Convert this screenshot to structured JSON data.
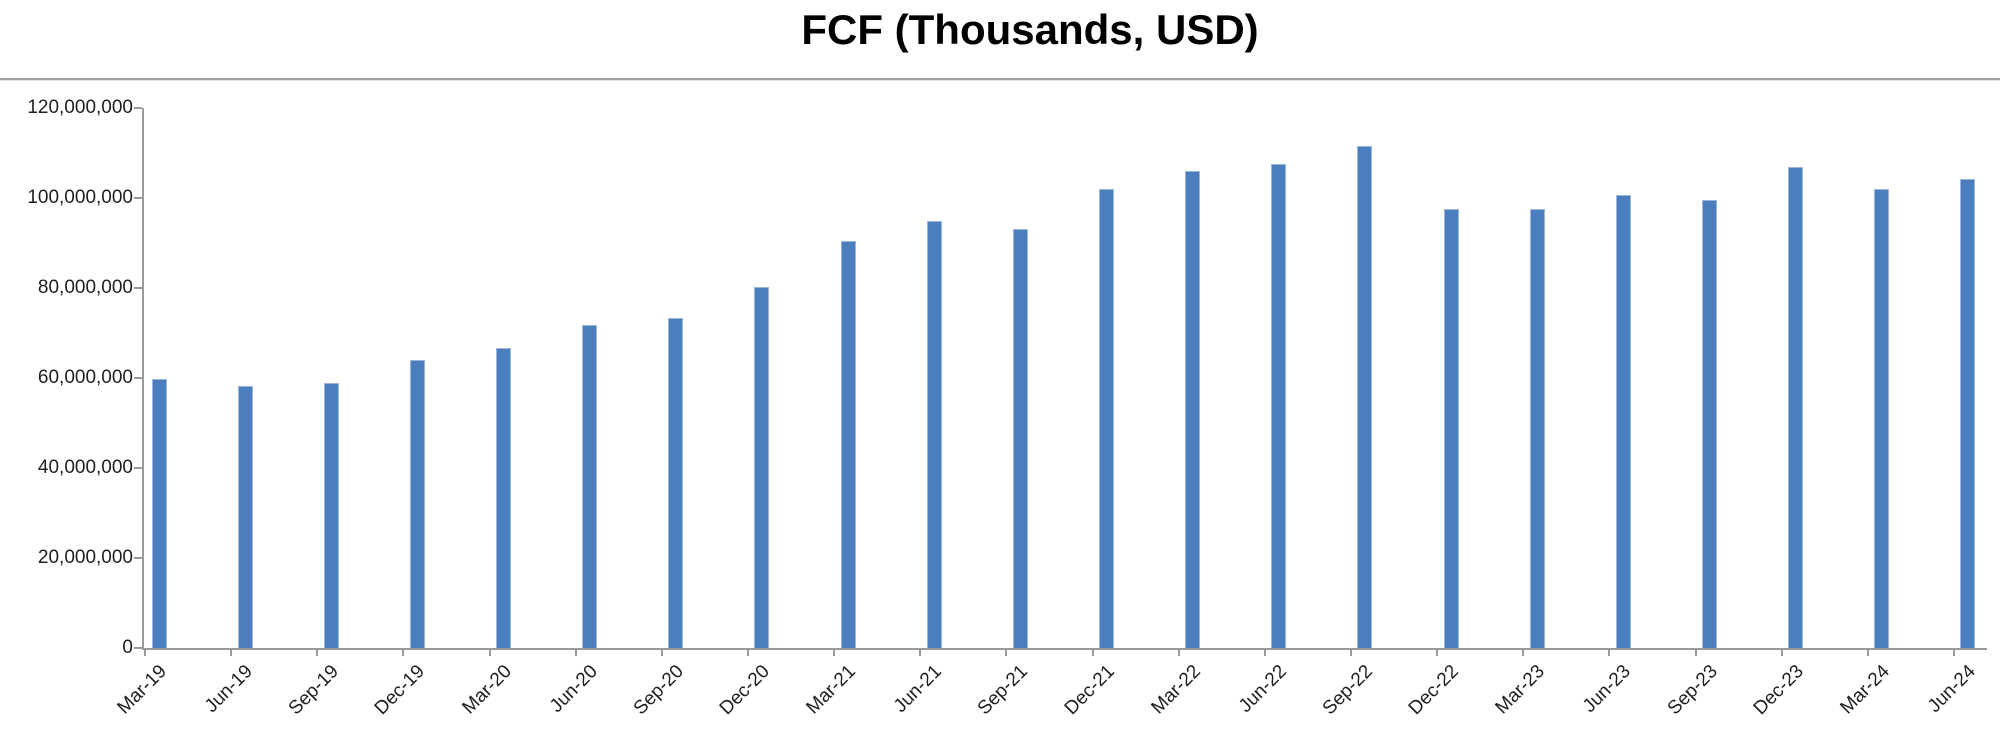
{
  "page": {
    "background": "#ffffff"
  },
  "header": {
    "title": "FCF (Thousands, USD)"
  },
  "chart_data": {
    "type": "bar",
    "title": "FCF (Thousands, USD)",
    "categories": [
      "Mar-19",
      "Jun-19",
      "Sep-19",
      "Dec-19",
      "Mar-20",
      "Jun-20",
      "Sep-20",
      "Dec-20",
      "Mar-21",
      "Jun-21",
      "Sep-21",
      "Dec-21",
      "Mar-22",
      "Jun-22",
      "Sep-22",
      "Dec-22",
      "Mar-23",
      "Jun-23",
      "Sep-23",
      "Dec-23",
      "Mar-24",
      "Jun-24"
    ],
    "values": [
      59800000,
      58200000,
      58900000,
      64100000,
      66600000,
      71700000,
      73400000,
      80200000,
      90400000,
      94800000,
      93000000,
      102000000,
      106000000,
      107600000,
      111500000,
      97500000,
      97600000,
      100600000,
      99500000,
      106800000,
      102000000,
      104300000
    ],
    "xlabel": "",
    "ylabel": "",
    "ylim": [
      0,
      120000000
    ],
    "ytick_interval": 20000000,
    "ytick_labels": [
      "0",
      "20,000,000",
      "40,000,000",
      "60,000,000",
      "80,000,000",
      "100,000,000",
      "120,000,000"
    ],
    "grid": "off",
    "legend": "none",
    "x_tick_rotation_deg": 45,
    "colors": {
      "bar_fill": "#4A7EBC",
      "bar_edge": "#9CB5D9",
      "axis_line": "#9A9A9A",
      "tick_label": "#1F1F1F",
      "title_text": "#000000",
      "separator": "#9E9E9E"
    }
  }
}
